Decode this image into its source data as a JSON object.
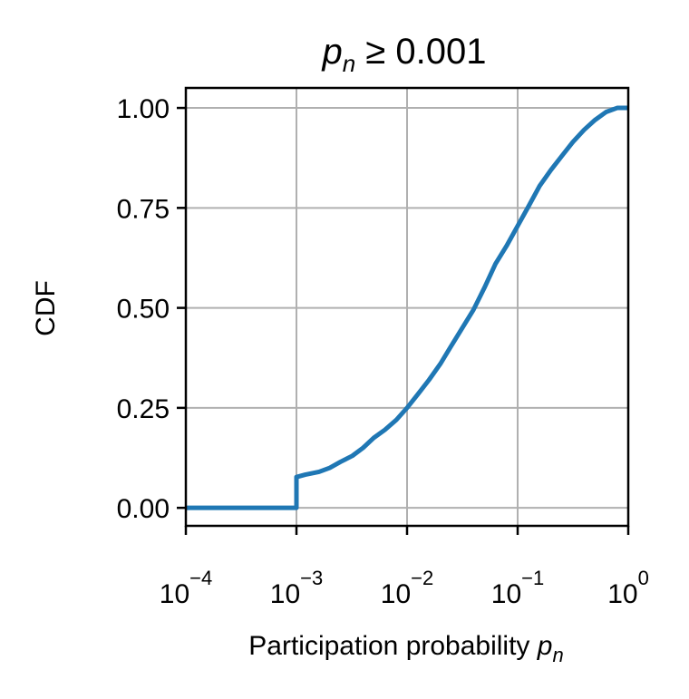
{
  "chart_data": {
    "type": "line",
    "title": "p_n ≥ 0.001",
    "title_parts": {
      "var": "p",
      "sub": "n",
      "rest": " ≥ 0.001"
    },
    "xlabel": "Participation probability p_n",
    "xlabel_parts": {
      "text": "Participation probability ",
      "var": "p",
      "sub": "n"
    },
    "ylabel": "CDF",
    "x_scale": "log",
    "xlim": [
      0.0001,
      1
    ],
    "ylim": [
      -0.045,
      1.05
    ],
    "x_ticks": [
      {
        "value": 0.0001,
        "base": "10",
        "exp": "−4"
      },
      {
        "value": 0.001,
        "base": "10",
        "exp": "−3"
      },
      {
        "value": 0.01,
        "base": "10",
        "exp": "−2"
      },
      {
        "value": 0.1,
        "base": "10",
        "exp": "−1"
      },
      {
        "value": 1,
        "base": "10",
        "exp": "0"
      }
    ],
    "y_ticks": [
      {
        "value": 0.0,
        "label": "0.00"
      },
      {
        "value": 0.25,
        "label": "0.25"
      },
      {
        "value": 0.5,
        "label": "0.50"
      },
      {
        "value": 0.75,
        "label": "0.75"
      },
      {
        "value": 1.0,
        "label": "1.00"
      }
    ],
    "grid": true,
    "line_color": "#1f77b4",
    "series": [
      {
        "x": [
          0.0001,
          0.001,
          0.001,
          0.0012,
          0.0016,
          0.002,
          0.0025,
          0.0032,
          0.004,
          0.005,
          0.0063,
          0.008,
          0.01,
          0.0126,
          0.0158,
          0.02,
          0.0251,
          0.0316,
          0.0398,
          0.05,
          0.063,
          0.0794,
          0.1,
          0.126,
          0.158,
          0.2,
          0.251,
          0.316,
          0.398,
          0.501,
          0.631,
          0.794,
          1.0
        ],
        "y": [
          0.0,
          0.0,
          0.077,
          0.083,
          0.09,
          0.1,
          0.115,
          0.13,
          0.15,
          0.175,
          0.195,
          0.22,
          0.25,
          0.285,
          0.32,
          0.36,
          0.405,
          0.45,
          0.495,
          0.55,
          0.61,
          0.655,
          0.705,
          0.755,
          0.805,
          0.845,
          0.88,
          0.915,
          0.945,
          0.97,
          0.99,
          1.0,
          1.0
        ]
      }
    ]
  }
}
